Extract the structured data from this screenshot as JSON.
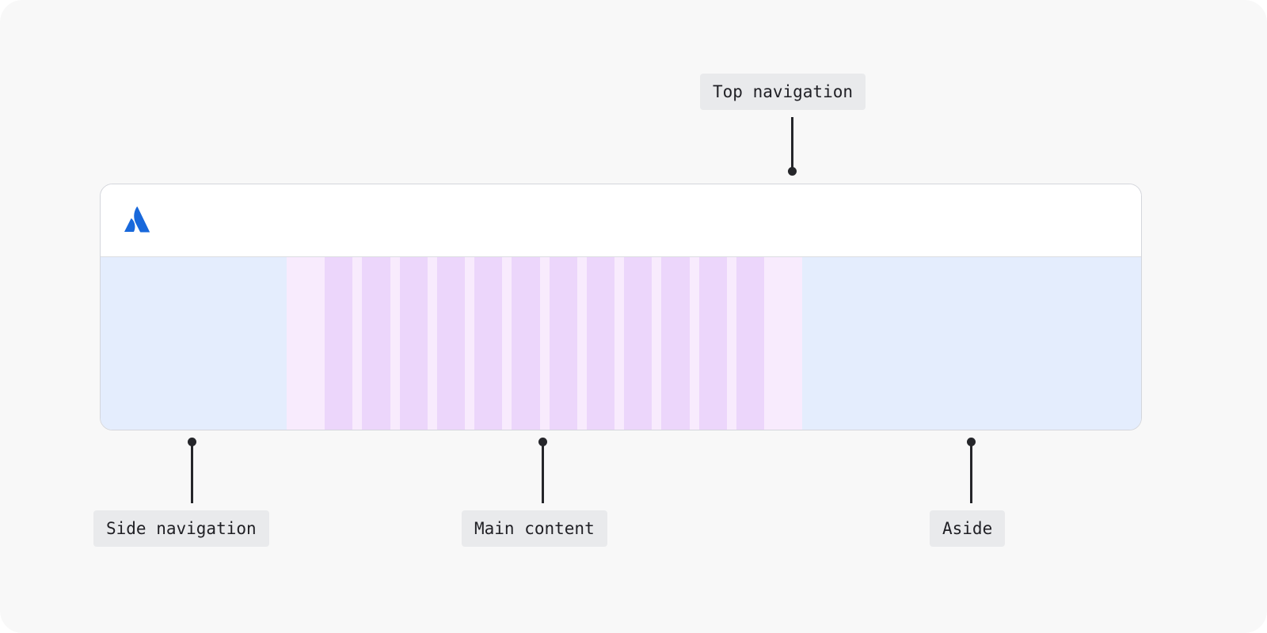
{
  "labels": {
    "top_navigation": "Top navigation",
    "side_navigation": "Side navigation",
    "main_content": "Main content",
    "aside": "Aside"
  },
  "logo": {
    "icon": "atlassian-logo-icon",
    "color": "#1868db"
  },
  "colors": {
    "side_navigation": "#e4edfd",
    "main_content_margin": "#f8ebfd",
    "grid_column": "#ecd6fb",
    "aside": "#e4edfd",
    "top_navigation": "#ffffff"
  },
  "grid": {
    "columns": 12
  }
}
